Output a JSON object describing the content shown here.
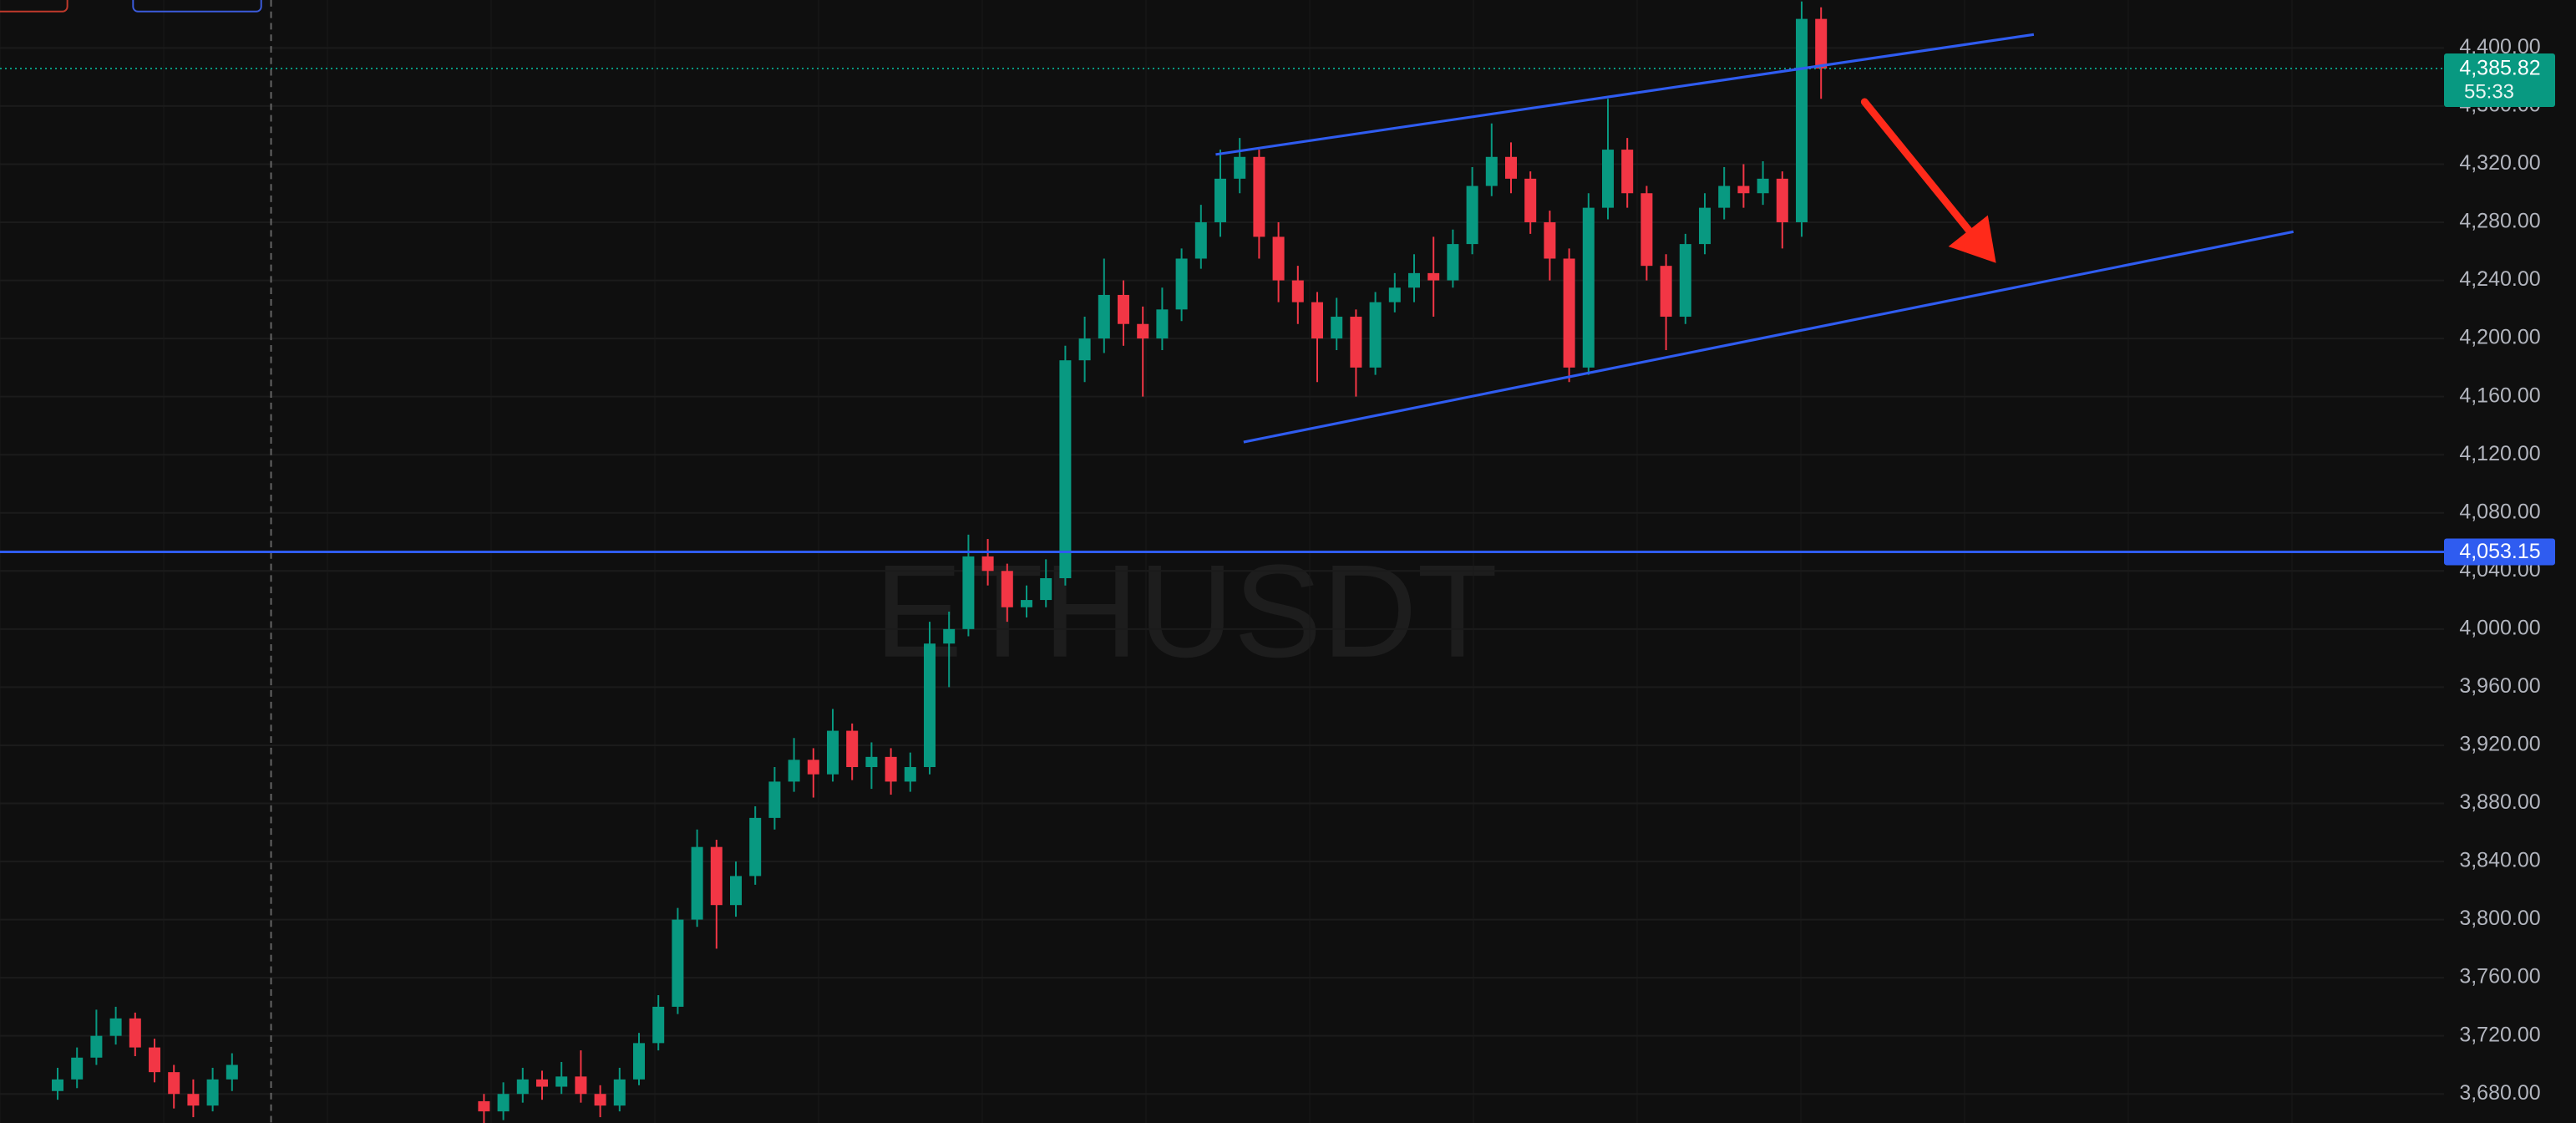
{
  "chart_data": {
    "type": "candlestick",
    "watermark": "ETHUSDT",
    "up_color": "#089981",
    "down_color": "#f23645",
    "grid": true,
    "ylim": [
      3660,
      4433
    ],
    "yticks": [
      {
        "value": 3680,
        "label": "3,680.00"
      },
      {
        "value": 3720,
        "label": "3,720.00"
      },
      {
        "value": 3760,
        "label": "3,760.00"
      },
      {
        "value": 3800,
        "label": "3,800.00"
      },
      {
        "value": 3840,
        "label": "3,840.00"
      },
      {
        "value": 3880,
        "label": "3,880.00"
      },
      {
        "value": 3920,
        "label": "3,920.00"
      },
      {
        "value": 3960,
        "label": "3,960.00"
      },
      {
        "value": 4000,
        "label": "4,000.00"
      },
      {
        "value": 4040,
        "label": "4,040.00"
      },
      {
        "value": 4080,
        "label": "4,080.00"
      },
      {
        "value": 4120,
        "label": "4,120.00"
      },
      {
        "value": 4160,
        "label": "4,160.00"
      },
      {
        "value": 4200,
        "label": "4,200.00"
      },
      {
        "value": 4240,
        "label": "4,240.00"
      },
      {
        "value": 4280,
        "label": "4,280.00"
      },
      {
        "value": 4320,
        "label": "4,320.00"
      },
      {
        "value": 4360,
        "label": "4,360.00"
      },
      {
        "value": 4400,
        "label": "4,400.00"
      }
    ],
    "last_price": {
      "value": 4385.82,
      "label": "4,385.82"
    },
    "countdown": "55:33",
    "level": {
      "value": 4053.15,
      "label": "4,053.15"
    },
    "open": [
      3682,
      3690,
      3705,
      3720,
      3732,
      3712,
      3695,
      3680,
      3672,
      3690,
      null,
      null,
      null,
      null,
      null,
      null,
      null,
      null,
      null,
      null,
      null,
      null,
      3675,
      3668,
      3680,
      3690,
      3685,
      3692,
      3680,
      3672,
      3690,
      3715,
      3740,
      3800,
      3850,
      3810,
      3830,
      3870,
      3895,
      3910,
      3900,
      3930,
      3905,
      3912,
      3895,
      3905,
      3990,
      4000,
      4050,
      4040,
      4015,
      4020,
      4035,
      4185,
      4200,
      4230,
      4210,
      4200,
      4220,
      4255,
      4280,
      4310,
      4325,
      4270,
      4240,
      4225,
      4200,
      4215,
      4180,
      4225,
      4235,
      4245,
      4240,
      4265,
      4305,
      4325,
      4310,
      4280,
      4255,
      4180,
      4290,
      4330,
      4300,
      4250,
      4215,
      4265,
      4290,
      4305,
      4300,
      4310,
      4280,
      4420
    ],
    "high": [
      3698,
      3712,
      3738,
      3740,
      3736,
      3718,
      3700,
      3690,
      3698,
      3708,
      null,
      null,
      null,
      null,
      null,
      null,
      null,
      null,
      null,
      null,
      null,
      null,
      3680,
      3688,
      3698,
      3696,
      3702,
      3710,
      3686,
      3698,
      3722,
      3748,
      3808,
      3862,
      3855,
      3840,
      3878,
      3905,
      3925,
      3918,
      3945,
      3935,
      3922,
      3918,
      3915,
      4005,
      4012,
      4065,
      4062,
      4045,
      4030,
      4048,
      4195,
      4215,
      4255,
      4240,
      4222,
      4235,
      4262,
      4292,
      4330,
      4338,
      4330,
      4280,
      4250,
      4232,
      4228,
      4220,
      4232,
      4245,
      4258,
      4270,
      4275,
      4318,
      4348,
      4335,
      4315,
      4288,
      4262,
      4300,
      4365,
      4338,
      4305,
      4258,
      4272,
      4300,
      4318,
      4320,
      4322,
      4315,
      4432,
      4428
    ],
    "low": [
      3676,
      3684,
      3700,
      3714,
      3706,
      3688,
      3670,
      3664,
      3668,
      3682,
      null,
      null,
      null,
      null,
      null,
      null,
      null,
      null,
      null,
      null,
      null,
      null,
      3660,
      3662,
      3674,
      3676,
      3680,
      3674,
      3664,
      3668,
      3686,
      3710,
      3735,
      3795,
      3780,
      3802,
      3824,
      3862,
      3888,
      3884,
      3895,
      3896,
      3890,
      3886,
      3888,
      3900,
      3960,
      3995,
      4030,
      4005,
      4008,
      4015,
      4030,
      4170,
      4190,
      4195,
      4160,
      4192,
      4212,
      4248,
      4270,
      4300,
      4255,
      4225,
      4210,
      4170,
      4192,
      4160,
      4175,
      4218,
      4225,
      4215,
      4235,
      4258,
      4298,
      4300,
      4272,
      4240,
      4170,
      4175,
      4282,
      4290,
      4240,
      4192,
      4210,
      4258,
      4282,
      4290,
      4292,
      4262,
      4270,
      4365
    ],
    "close": [
      3690,
      3705,
      3720,
      3732,
      3712,
      3695,
      3680,
      3672,
      3690,
      3700,
      null,
      null,
      null,
      null,
      null,
      null,
      null,
      null,
      null,
      null,
      null,
      null,
      3668,
      3680,
      3690,
      3685,
      3692,
      3680,
      3672,
      3690,
      3715,
      3740,
      3800,
      3850,
      3810,
      3830,
      3870,
      3895,
      3910,
      3900,
      3930,
      3905,
      3912,
      3895,
      3905,
      3990,
      4000,
      4050,
      4040,
      4015,
      4020,
      4035,
      4185,
      4200,
      4230,
      4210,
      4200,
      4220,
      4255,
      4280,
      4310,
      4325,
      4270,
      4240,
      4225,
      4200,
      4215,
      4180,
      4225,
      4235,
      4245,
      4240,
      4265,
      4305,
      4325,
      4310,
      4280,
      4255,
      4180,
      4290,
      4330,
      4300,
      4250,
      4215,
      4265,
      4290,
      4305,
      4300,
      4310,
      4280,
      4420,
      4385.82
    ]
  }
}
